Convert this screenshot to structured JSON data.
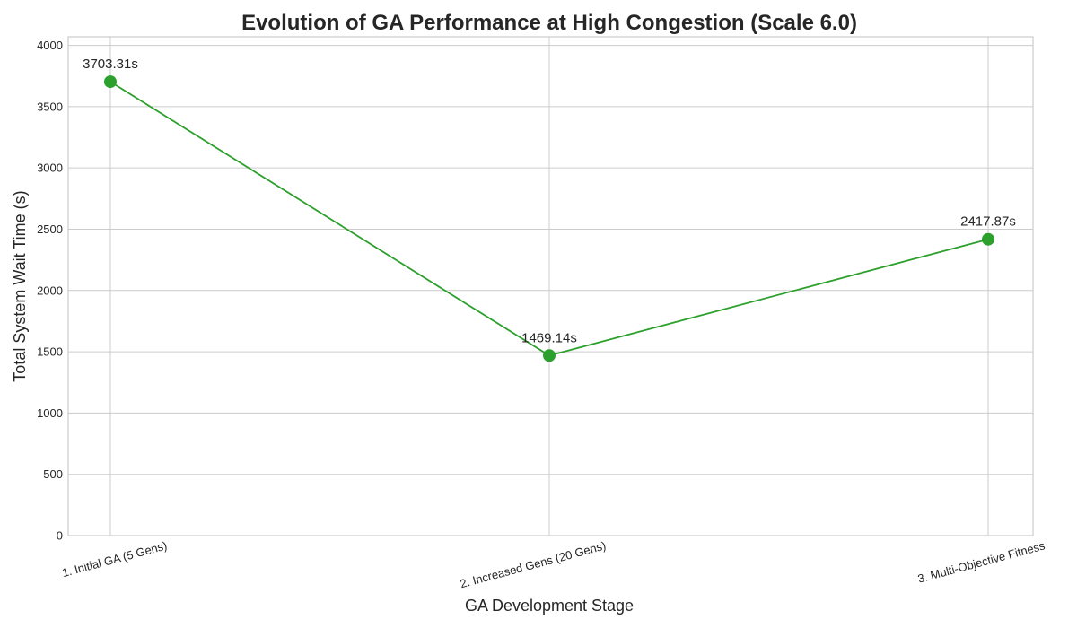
{
  "chart_data": {
    "type": "line",
    "title": "Evolution of GA Performance at High Congestion (Scale 6.0)",
    "xlabel": "GA Development Stage",
    "ylabel": "Total System Wait Time (s)",
    "categories": [
      "1. Initial GA (5 Gens)",
      "2. Increased Gens (20 Gens)",
      "3. Multi-Objective Fitness"
    ],
    "series": [
      {
        "name": "Total System Wait Time",
        "values": [
          3703.31,
          1469.14,
          2417.87
        ],
        "labels": [
          "3703.31s",
          "1469.14s",
          "2417.87s"
        ],
        "color": "#2ca02c"
      }
    ],
    "ylim": [
      0,
      4070
    ],
    "yticks": [
      0,
      500,
      1000,
      1500,
      2000,
      2500,
      3000,
      3500,
      4000
    ],
    "grid": true
  }
}
